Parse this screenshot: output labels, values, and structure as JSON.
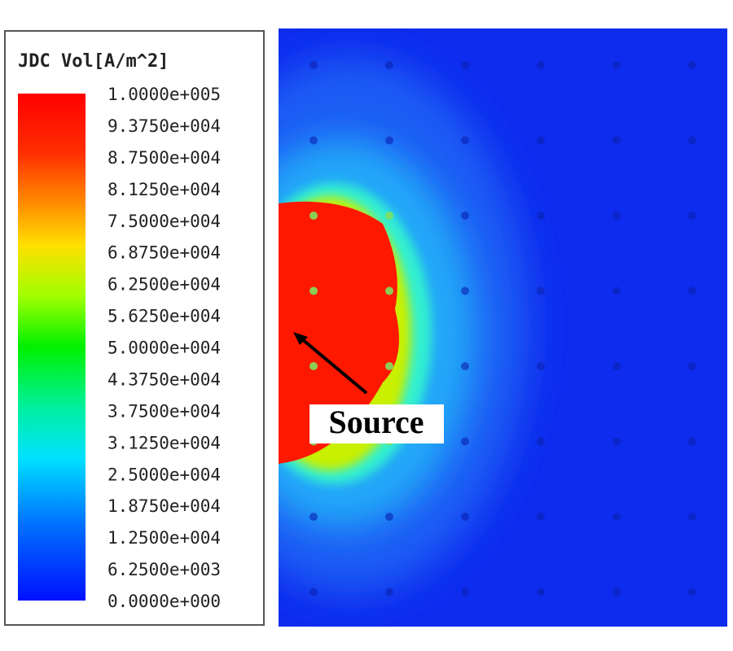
{
  "legend": {
    "title": "JDC Vol[A/m^2]",
    "labels": [
      "1.0000e+005",
      "9.3750e+004",
      "8.7500e+004",
      "8.1250e+004",
      "7.5000e+004",
      "6.8750e+004",
      "6.2500e+004",
      "5.6250e+004",
      "5.0000e+004",
      "4.3750e+004",
      "3.7500e+004",
      "3.1250e+004",
      "2.5000e+004",
      "1.8750e+004",
      "1.2500e+004",
      "6.2500e+003",
      "0.0000e+000"
    ]
  },
  "annotation": {
    "label": "Source"
  }
}
